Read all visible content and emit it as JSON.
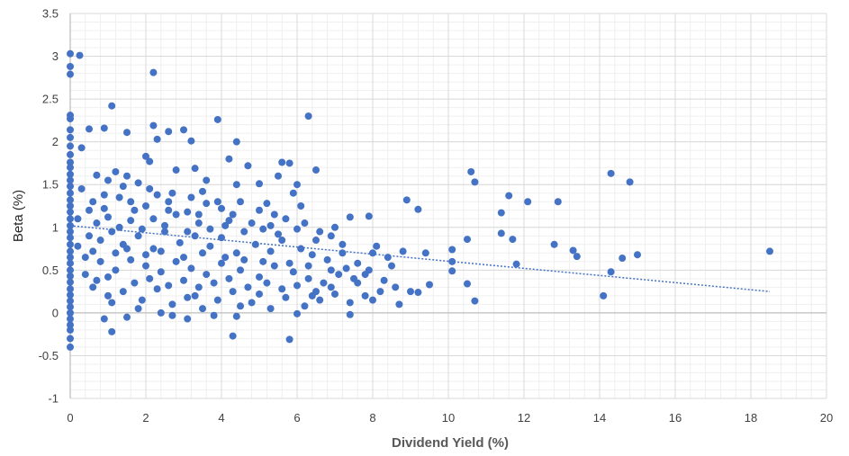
{
  "chart_data": {
    "type": "scatter",
    "title": "",
    "xlabel": "Dividend Yield (%)",
    "ylabel": "Beta (%)",
    "xlim": [
      0,
      20
    ],
    "ylim": [
      -1,
      3.5
    ],
    "x_ticks": [
      "0",
      "2",
      "4",
      "6",
      "8",
      "10",
      "12",
      "14",
      "16",
      "18",
      "20"
    ],
    "y_ticks": [
      "-1",
      "-0.5",
      "0",
      "0.5",
      "1",
      "1.5",
      "2",
      "2.5",
      "3",
      "3.5"
    ],
    "grid": true,
    "legend": "none",
    "colors": {
      "marker": "#4472C4",
      "trendline": "#4472C4",
      "grid": "#d9d9d9",
      "axis": "#bfbfbf"
    },
    "trendline": {
      "style": "dotted",
      "x": [
        0,
        18.5
      ],
      "y": [
        1.02,
        0.25
      ]
    },
    "series": [
      {
        "points": [
          [
            0.0,
            3.03
          ],
          [
            0.0,
            2.88
          ],
          [
            0.0,
            2.79
          ],
          [
            0.25,
            3.01
          ],
          [
            0.0,
            2.31
          ],
          [
            0.0,
            2.27
          ],
          [
            0.0,
            2.14
          ],
          [
            0.0,
            2.05
          ],
          [
            0.0,
            1.95
          ],
          [
            0.0,
            1.85
          ],
          [
            0.0,
            1.76
          ],
          [
            0.0,
            1.7
          ],
          [
            0.0,
            1.62
          ],
          [
            0.0,
            1.55
          ],
          [
            0.0,
            1.48
          ],
          [
            0.0,
            1.4
          ],
          [
            0.0,
            1.32
          ],
          [
            0.0,
            1.25
          ],
          [
            0.0,
            1.18
          ],
          [
            0.0,
            1.1
          ],
          [
            0.0,
            1.02
          ],
          [
            0.0,
            0.95
          ],
          [
            0.0,
            0.88
          ],
          [
            0.0,
            0.8
          ],
          [
            0.0,
            0.72
          ],
          [
            0.0,
            0.65
          ],
          [
            0.0,
            0.58
          ],
          [
            0.0,
            0.5
          ],
          [
            0.0,
            0.43
          ],
          [
            0.0,
            0.36
          ],
          [
            0.0,
            0.28
          ],
          [
            0.0,
            0.21
          ],
          [
            0.0,
            0.14
          ],
          [
            0.0,
            0.07
          ],
          [
            0.0,
            0.0
          ],
          [
            0.0,
            -0.07
          ],
          [
            0.0,
            -0.14
          ],
          [
            0.0,
            -0.2
          ],
          [
            0.0,
            -0.3
          ],
          [
            0.0,
            -0.4
          ],
          [
            0.3,
            1.93
          ],
          [
            0.5,
            2.15
          ],
          [
            0.9,
            2.16
          ],
          [
            1.1,
            2.42
          ],
          [
            1.5,
            2.11
          ],
          [
            2.2,
            2.81
          ],
          [
            2.2,
            2.19
          ],
          [
            2.3,
            2.03
          ],
          [
            2.6,
            2.12
          ],
          [
            3.0,
            2.14
          ],
          [
            3.2,
            2.01
          ],
          [
            3.9,
            2.26
          ],
          [
            4.4,
            2.0
          ],
          [
            6.3,
            2.3
          ],
          [
            2.0,
            1.83
          ],
          [
            2.1,
            1.77
          ],
          [
            3.3,
            1.69
          ],
          [
            4.2,
            1.8
          ],
          [
            4.7,
            1.72
          ],
          [
            5.6,
            1.76
          ],
          [
            5.8,
            1.75
          ],
          [
            6.5,
            1.67
          ],
          [
            0.7,
            1.61
          ],
          [
            1.2,
            1.65
          ],
          [
            1.5,
            1.6
          ],
          [
            2.8,
            1.67
          ],
          [
            3.6,
            1.55
          ],
          [
            4.4,
            1.5
          ],
          [
            5.0,
            1.51
          ],
          [
            5.5,
            1.6
          ],
          [
            5.9,
            1.4
          ],
          [
            6.0,
            1.5
          ],
          [
            0.6,
            1.3
          ],
          [
            0.9,
            1.22
          ],
          [
            1.3,
            1.35
          ],
          [
            1.7,
            1.2
          ],
          [
            2.1,
            1.45
          ],
          [
            2.6,
            1.3
          ],
          [
            3.1,
            1.18
          ],
          [
            3.5,
            1.42
          ],
          [
            3.9,
            1.3
          ],
          [
            4.3,
            1.15
          ],
          [
            4.8,
            1.05
          ],
          [
            5.2,
            1.28
          ],
          [
            5.7,
            1.1
          ],
          [
            6.2,
            1.05
          ],
          [
            6.6,
            0.95
          ],
          [
            6.9,
            0.9
          ],
          [
            7.0,
            1.0
          ],
          [
            7.4,
            1.12
          ],
          [
            7.9,
            1.13
          ],
          [
            0.5,
            0.9
          ],
          [
            0.8,
            0.85
          ],
          [
            1.1,
            0.95
          ],
          [
            1.4,
            0.8
          ],
          [
            1.8,
            0.9
          ],
          [
            2.2,
            0.75
          ],
          [
            2.5,
            0.95
          ],
          [
            2.9,
            0.82
          ],
          [
            3.3,
            0.9
          ],
          [
            3.7,
            0.78
          ],
          [
            4.0,
            0.88
          ],
          [
            4.4,
            0.7
          ],
          [
            4.9,
            0.8
          ],
          [
            5.3,
            0.72
          ],
          [
            5.6,
            0.85
          ],
          [
            6.1,
            0.75
          ],
          [
            6.4,
            0.68
          ],
          [
            6.8,
            0.62
          ],
          [
            7.2,
            0.7
          ],
          [
            7.6,
            0.58
          ],
          [
            8.0,
            0.7
          ],
          [
            8.4,
            0.65
          ],
          [
            8.8,
            0.72
          ],
          [
            9.4,
            0.7
          ],
          [
            0.4,
            0.65
          ],
          [
            0.8,
            0.6
          ],
          [
            1.2,
            0.5
          ],
          [
            1.6,
            0.62
          ],
          [
            2.0,
            0.55
          ],
          [
            2.4,
            0.48
          ],
          [
            2.8,
            0.6
          ],
          [
            3.2,
            0.52
          ],
          [
            3.6,
            0.45
          ],
          [
            4.0,
            0.58
          ],
          [
            4.5,
            0.5
          ],
          [
            5.0,
            0.42
          ],
          [
            5.4,
            0.55
          ],
          [
            5.9,
            0.48
          ],
          [
            6.3,
            0.4
          ],
          [
            6.7,
            0.35
          ],
          [
            7.1,
            0.45
          ],
          [
            7.5,
            0.4
          ],
          [
            7.9,
            0.5
          ],
          [
            8.3,
            0.38
          ],
          [
            8.6,
            0.3
          ],
          [
            9.0,
            0.25
          ],
          [
            9.5,
            0.33
          ],
          [
            0.6,
            0.3
          ],
          [
            1.0,
            0.2
          ],
          [
            1.4,
            0.25
          ],
          [
            1.9,
            0.15
          ],
          [
            2.3,
            0.28
          ],
          [
            2.7,
            0.1
          ],
          [
            3.1,
            0.18
          ],
          [
            3.5,
            0.05
          ],
          [
            3.9,
            0.15
          ],
          [
            4.3,
            0.25
          ],
          [
            4.8,
            0.12
          ],
          [
            5.3,
            0.05
          ],
          [
            5.7,
            0.18
          ],
          [
            6.2,
            0.08
          ],
          [
            6.6,
            0.15
          ],
          [
            7.0,
            0.22
          ],
          [
            7.4,
            0.12
          ],
          [
            7.8,
            0.2
          ],
          [
            8.2,
            0.25
          ],
          [
            8.7,
            0.1
          ],
          [
            0.9,
            -0.07
          ],
          [
            1.1,
            -0.22
          ],
          [
            1.5,
            -0.05
          ],
          [
            2.7,
            -0.03
          ],
          [
            3.1,
            -0.07
          ],
          [
            3.8,
            -0.03
          ],
          [
            4.3,
            -0.27
          ],
          [
            4.4,
            -0.04
          ],
          [
            5.8,
            -0.31
          ],
          [
            6.0,
            -0.01
          ],
          [
            7.4,
            -0.02
          ],
          [
            8.9,
            1.32
          ],
          [
            9.2,
            1.21
          ],
          [
            10.6,
            1.65
          ],
          [
            10.7,
            1.53
          ],
          [
            11.6,
            1.37
          ],
          [
            11.4,
            1.17
          ],
          [
            12.1,
            1.3
          ],
          [
            12.9,
            1.3
          ],
          [
            11.4,
            0.93
          ],
          [
            11.7,
            0.86
          ],
          [
            12.8,
            0.8
          ],
          [
            13.3,
            0.73
          ],
          [
            13.4,
            0.66
          ],
          [
            10.1,
            0.74
          ],
          [
            10.5,
            0.86
          ],
          [
            10.1,
            0.6
          ],
          [
            10.1,
            0.49
          ],
          [
            10.5,
            0.34
          ],
          [
            10.7,
            0.14
          ],
          [
            11.8,
            0.57
          ],
          [
            14.3,
            1.63
          ],
          [
            14.8,
            1.53
          ],
          [
            14.3,
            0.48
          ],
          [
            14.1,
            0.2
          ],
          [
            14.6,
            0.64
          ],
          [
            15.0,
            0.68
          ],
          [
            18.5,
            0.72
          ],
          [
            0.3,
            1.45
          ],
          [
            0.5,
            1.2
          ],
          [
            0.7,
            1.05
          ],
          [
            1.0,
            1.12
          ],
          [
            1.3,
            1.0
          ],
          [
            1.6,
            1.08
          ],
          [
            1.9,
            0.98
          ],
          [
            2.2,
            1.1
          ],
          [
            2.5,
            1.02
          ],
          [
            2.8,
            1.15
          ],
          [
            3.1,
            0.95
          ],
          [
            3.4,
            1.05
          ],
          [
            3.7,
            0.98
          ],
          [
            4.1,
            1.02
          ],
          [
            4.6,
            0.95
          ],
          [
            5.1,
            0.98
          ],
          [
            5.5,
            0.92
          ],
          [
            0.4,
            0.45
          ],
          [
            0.7,
            0.38
          ],
          [
            1.0,
            0.42
          ],
          [
            1.7,
            0.35
          ],
          [
            2.1,
            0.4
          ],
          [
            2.6,
            0.32
          ],
          [
            3.0,
            0.38
          ],
          [
            3.4,
            0.3
          ],
          [
            3.8,
            0.35
          ],
          [
            4.2,
            0.4
          ],
          [
            4.7,
            0.3
          ],
          [
            5.2,
            0.35
          ],
          [
            5.6,
            0.28
          ],
          [
            6.0,
            0.32
          ],
          [
            6.5,
            0.25
          ],
          [
            6.9,
            0.3
          ],
          [
            0.2,
            0.78
          ],
          [
            0.6,
            0.72
          ],
          [
            1.2,
            0.7
          ],
          [
            1.5,
            0.75
          ],
          [
            2.0,
            0.68
          ],
          [
            2.4,
            0.72
          ],
          [
            3.0,
            0.65
          ],
          [
            3.5,
            0.7
          ],
          [
            4.1,
            0.65
          ],
          [
            4.6,
            0.62
          ],
          [
            5.1,
            0.6
          ],
          [
            5.8,
            0.58
          ],
          [
            6.3,
            0.55
          ],
          [
            6.9,
            0.5
          ],
          [
            7.3,
            0.52
          ],
          [
            7.8,
            0.45
          ],
          [
            1.0,
            1.55
          ],
          [
            1.4,
            1.48
          ],
          [
            1.8,
            1.52
          ],
          [
            2.3,
            1.38
          ],
          [
            2.7,
            1.4
          ],
          [
            3.2,
            1.35
          ],
          [
            3.6,
            1.28
          ],
          [
            4.0,
            1.22
          ],
          [
            4.5,
            1.3
          ],
          [
            5.0,
            1.2
          ],
          [
            5.4,
            1.15
          ],
          [
            6.1,
            1.25
          ],
          [
            0.2,
            1.1
          ],
          [
            0.9,
            1.38
          ],
          [
            1.6,
            1.3
          ],
          [
            2.0,
            1.25
          ],
          [
            2.6,
            1.2
          ],
          [
            3.4,
            1.15
          ],
          [
            4.2,
            1.08
          ],
          [
            5.3,
            1.02
          ],
          [
            6.0,
            0.98
          ],
          [
            6.5,
            0.85
          ],
          [
            7.2,
            0.8
          ],
          [
            8.1,
            0.78
          ],
          [
            8.5,
            0.55
          ],
          [
            1.1,
            0.12
          ],
          [
            1.8,
            0.05
          ],
          [
            2.4,
            0.0
          ],
          [
            3.3,
            0.2
          ],
          [
            4.5,
            0.08
          ],
          [
            5.0,
            0.22
          ],
          [
            6.4,
            0.2
          ],
          [
            7.6,
            0.35
          ],
          [
            8.0,
            0.15
          ],
          [
            9.2,
            0.24
          ]
        ]
      }
    ]
  }
}
